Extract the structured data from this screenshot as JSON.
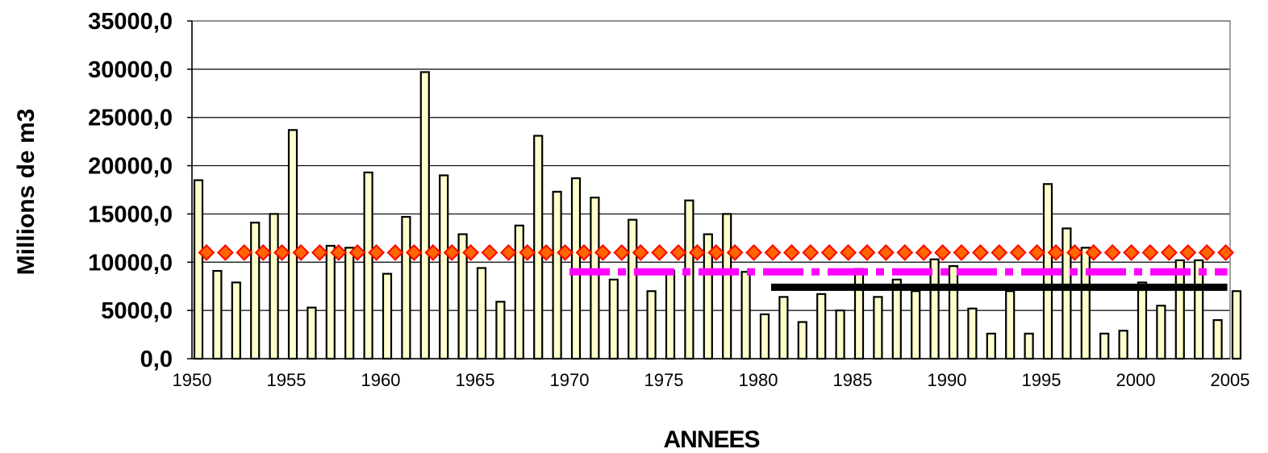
{
  "chart_data": {
    "type": "bar",
    "title": "",
    "xlabel": "ANNEES",
    "ylabel": "Millions de m3",
    "xlim": [
      1950,
      2005
    ],
    "ylim": [
      0,
      35000
    ],
    "grid": "horizontal",
    "legend": "none",
    "y_ticks": [
      "0,0",
      "5000,0",
      "10000,0",
      "15000,0",
      "20000,0",
      "25000,0",
      "30000,0",
      "35000,0"
    ],
    "x_ticks": [
      "1950",
      "1955",
      "1960",
      "1965",
      "1970",
      "1975",
      "1980",
      "1985",
      "1990",
      "1995",
      "2000",
      "2005"
    ],
    "colors": {
      "bar_fill": "#FFFFCC",
      "bar_stroke": "#000000",
      "grid": "#000000",
      "mean_marker_fill": "#FF6600",
      "mean_marker_stroke": "#FF0000",
      "mean_1970_line": "#FF00FF",
      "mean_1980_line": "#000000"
    },
    "x": [
      1950,
      1951,
      1952,
      1953,
      1954,
      1955,
      1956,
      1957,
      1958,
      1959,
      1960,
      1961,
      1962,
      1963,
      1964,
      1965,
      1966,
      1967,
      1968,
      1969,
      1970,
      1971,
      1972,
      1973,
      1974,
      1975,
      1976,
      1977,
      1978,
      1979,
      1980,
      1981,
      1982,
      1983,
      1984,
      1985,
      1986,
      1987,
      1988,
      1989,
      1990,
      1991,
      1992,
      1993,
      1994,
      1995,
      1996,
      1997,
      1998,
      1999,
      2000,
      2001,
      2002,
      2003,
      2004,
      2005
    ],
    "values": [
      18500,
      9100,
      7900,
      14100,
      15000,
      23700,
      5300,
      11700,
      11500,
      19300,
      8800,
      14700,
      29700,
      19000,
      12900,
      9400,
      5900,
      13800,
      23100,
      17300,
      18700,
      16700,
      8200,
      14400,
      7000,
      9100,
      16400,
      12900,
      15000,
      9000,
      4600,
      6400,
      3800,
      6700,
      5000,
      9300,
      6400,
      8200,
      7000,
      10300,
      9600,
      5200,
      2600,
      7000,
      2600,
      18100,
      13500,
      11500,
      2600,
      2900,
      7900,
      5500,
      10200,
      10200,
      4000,
      7000
    ],
    "series": [
      {
        "values": [
          18500,
          9100,
          7900,
          14100,
          15000,
          23700,
          5300,
          11700,
          11500,
          19300,
          8800,
          14700,
          29700,
          19000,
          12900,
          9400,
          5900,
          13800,
          23100,
          17300,
          18700,
          16700,
          8200,
          14400,
          7000,
          9100,
          16400,
          12900,
          15000,
          9000,
          4600,
          6400,
          3800,
          6700,
          5000,
          9300,
          6400,
          8200,
          7000,
          10300,
          9600,
          5200,
          2600,
          7000,
          2600,
          18100,
          13500,
          11500,
          2600,
          2900,
          7900,
          5500,
          10200,
          10200,
          4000,
          7000
        ]
      }
    ],
    "mean_lines": [
      {
        "kind": "diamond-markers",
        "value": 11000,
        "x_from": 1950,
        "x_to": 2004
      },
      {
        "kind": "dash-dot",
        "value": 9000,
        "x_from": 1970,
        "x_to": 2004
      },
      {
        "kind": "solid-thick",
        "value": 7400,
        "x_from": 1980,
        "x_to": 2004
      }
    ]
  }
}
